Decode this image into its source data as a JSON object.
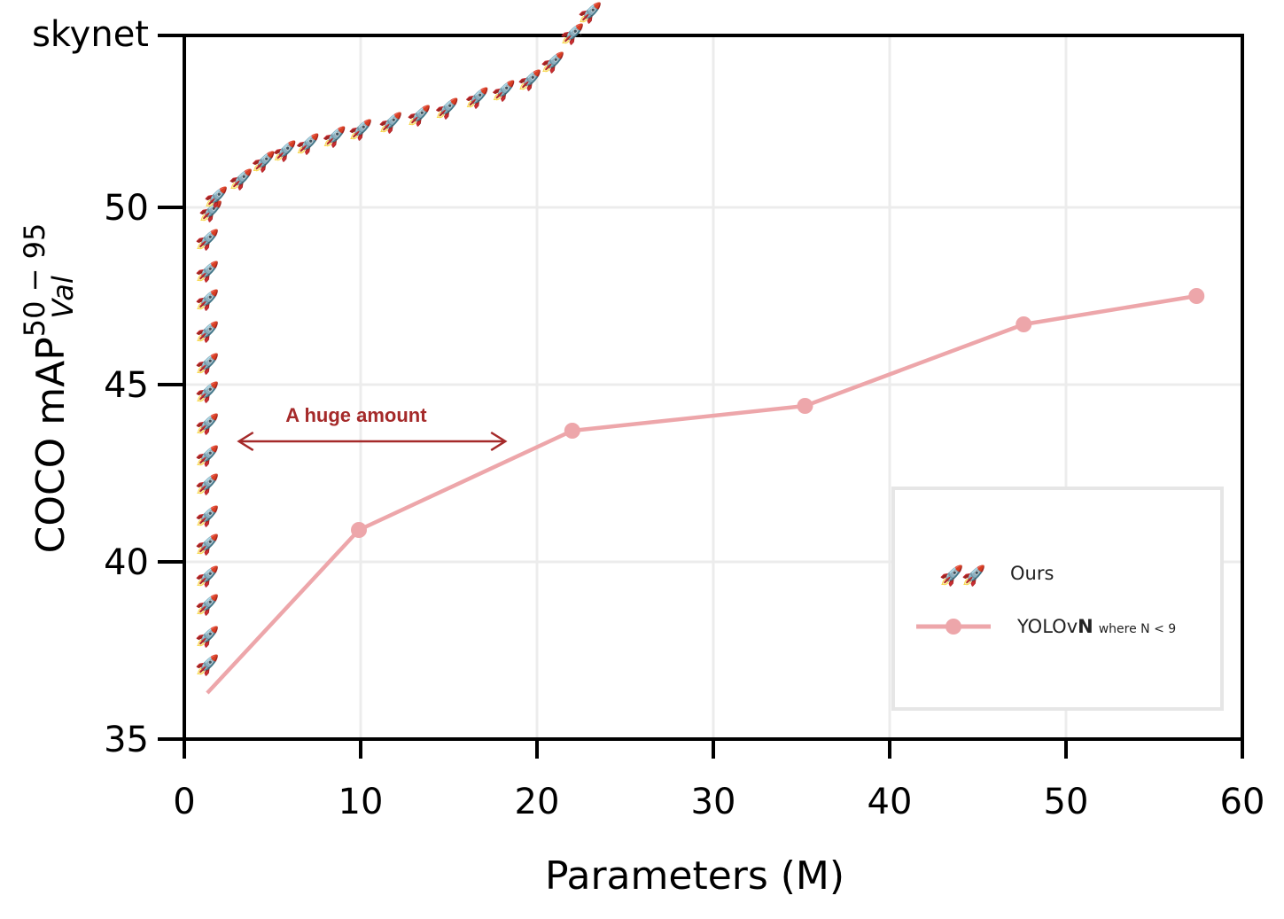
{
  "chart_data": {
    "type": "line",
    "title": "",
    "xlabel": "Parameters (M)",
    "ylabel": {
      "main": "COCO mAP",
      "superscript": "50 − 95",
      "subscript": "Val"
    },
    "xlim": [
      0,
      60
    ],
    "ylim": [
      35,
      54.8
    ],
    "xticks": [
      "0",
      "10",
      "20",
      "30",
      "40",
      "50",
      "60"
    ],
    "yticks": [
      "35",
      "40",
      "45",
      "50"
    ],
    "ytick_extra": {
      "label": "skynet",
      "value": 54.85
    },
    "grid": true,
    "legend_position": "lower-right",
    "marker_glyph": "🚀",
    "series": [
      {
        "name": "Ours",
        "marker": "rocket",
        "x": [
          1.3,
          1.3,
          1.3,
          1.3,
          1.3,
          1.3,
          1.3,
          1.3,
          1.3,
          1.3,
          1.3,
          1.3,
          1.3,
          1.3,
          1.3,
          1.5,
          1.8,
          3.2,
          4.5,
          5.7,
          7.0,
          8.5,
          10.0,
          11.7,
          13.3,
          14.9,
          16.6,
          18.1,
          19.6,
          20.9,
          22.0,
          23.0
        ],
        "y": [
          37.1,
          37.9,
          38.8,
          39.6,
          40.5,
          41.3,
          42.2,
          43.0,
          43.9,
          44.8,
          45.6,
          46.5,
          47.4,
          48.2,
          49.1,
          49.9,
          50.3,
          50.8,
          51.3,
          51.6,
          51.8,
          52.0,
          52.2,
          52.4,
          52.6,
          52.8,
          53.1,
          53.3,
          53.6,
          54.1,
          54.9,
          55.5
        ]
      },
      {
        "name": "YOLOvN",
        "name_parts": {
          "prefix": "YOLOv",
          "bold": "N",
          "suffix": "where N < 9"
        },
        "color": "#eda6aa",
        "x": [
          1.3,
          9.9,
          22.0,
          35.2,
          47.6,
          57.4
        ],
        "y": [
          36.3,
          40.9,
          43.7,
          44.4,
          46.7,
          47.5
        ],
        "marker_points": [
          1,
          2,
          3,
          4,
          5
        ]
      }
    ],
    "annotations": [
      {
        "text": "A huge amount",
        "arrow_from": [
          3.1,
          43.4
        ],
        "arrow_to": [
          18.2,
          43.4
        ],
        "color": "#a52a2a"
      }
    ]
  }
}
